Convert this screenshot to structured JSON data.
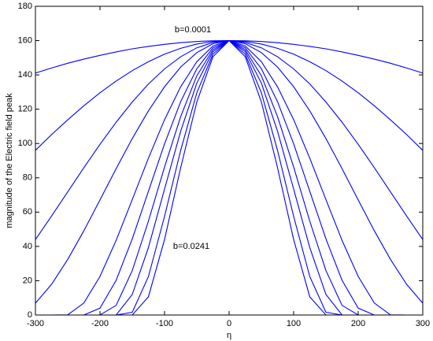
{
  "chart_data": {
    "type": "line",
    "xlabel": "η",
    "ylabel": "magnitude of the Electric field peak",
    "annotations": [
      "b=0.0001",
      "b=0.0241"
    ],
    "x": [
      -300,
      -275,
      -250,
      -225,
      -200,
      -175,
      -150,
      -125,
      -100,
      -75,
      -50,
      -25,
      0,
      25,
      50,
      75,
      100,
      125,
      150,
      175,
      200,
      225,
      250,
      275,
      300
    ],
    "series": [
      {
        "color": "#0000ff",
        "values": [
          141.1,
          144.0,
          146.8,
          149.2,
          151.4,
          153.4,
          155.2,
          156.6,
          157.8,
          158.8,
          159.5,
          159.9,
          160,
          159.9,
          159.5,
          158.8,
          157.8,
          156.6,
          155.2,
          153.4,
          151.4,
          149.2,
          146.8,
          144.0,
          141.1
        ]
      },
      {
        "color": "#0000ff",
        "values": [
          96.0,
          105.2,
          113.8,
          122.0,
          129.6,
          136.4,
          142.5,
          147.7,
          152.1,
          155.5,
          158.0,
          159.5,
          160,
          159.5,
          158.0,
          155.5,
          152.1,
          147.7,
          142.5,
          136.4,
          129.6,
          122.0,
          113.8,
          105.2,
          96.0
        ]
      },
      {
        "color": "#0000ff",
        "values": [
          44.0,
          57.7,
          71.8,
          85.9,
          99.5,
          112.4,
          124.2,
          134.7,
          143.5,
          150.6,
          155.8,
          158.9,
          160,
          158.9,
          155.8,
          150.6,
          143.5,
          134.7,
          124.2,
          112.4,
          99.5,
          85.9,
          71.8,
          57.7,
          44.0
        ]
      },
      {
        "color": "#0000ff",
        "values": [
          6.9,
          17.9,
          32.4,
          49.1,
          67.1,
          85.3,
          102.9,
          119.0,
          133.1,
          144.6,
          153.0,
          158.2,
          160,
          158.2,
          153.0,
          144.6,
          133.1,
          119.0,
          102.9,
          85.3,
          67.1,
          49.1,
          32.4,
          17.9,
          6.9
        ]
      },
      {
        "color": "#0000ff",
        "values": [
          0,
          0,
          0.1,
          7.0,
          22.5,
          43.5,
          67.3,
          91.4,
          113.9,
          133.1,
          147.7,
          156.9,
          160,
          156.9,
          147.7,
          133.1,
          113.9,
          91.4,
          67.3,
          43.5,
          22.5,
          7.0,
          0.1,
          0,
          0
        ]
      },
      {
        "color": "#0000ff",
        "values": [
          0,
          0,
          0,
          0,
          4.0,
          20.2,
          44.4,
          72.1,
          99.8,
          124.4,
          143.6,
          155.8,
          160,
          155.8,
          143.6,
          124.4,
          99.8,
          72.1,
          44.4,
          20.2,
          4.0,
          0,
          0,
          0,
          0
        ]
      },
      {
        "color": "#0000ff",
        "values": [
          0,
          0,
          0,
          0,
          0,
          5.6,
          25.9,
          54.7,
          86.3,
          115.7,
          139.5,
          154.7,
          160,
          154.7,
          139.5,
          115.7,
          86.3,
          54.7,
          25.9,
          5.6,
          0,
          0,
          0,
          0,
          0
        ]
      },
      {
        "color": "#0000ff",
        "values": [
          0,
          0,
          0,
          0,
          0,
          0,
          12.0,
          39.3,
          73.4,
          107.2,
          135.2,
          153.6,
          160,
          153.6,
          135.2,
          107.2,
          73.4,
          39.3,
          12.0,
          0,
          0,
          0,
          0,
          0,
          0
        ]
      },
      {
        "color": "#0000ff",
        "values": [
          0,
          0,
          0,
          0,
          0,
          0,
          1.6,
          22.4,
          57.5,
          96.0,
          129.6,
          152.1,
          160,
          152.1,
          129.6,
          96.0,
          57.5,
          22.4,
          1.6,
          0,
          0,
          0,
          0,
          0,
          0
        ]
      },
      {
        "color": "#0000ff",
        "values": [
          0,
          0,
          0,
          0,
          0,
          0,
          0,
          10.6,
          44.0,
          85.9,
          124.2,
          150.6,
          160,
          150.6,
          124.2,
          85.9,
          44.0,
          10.6,
          0,
          0,
          0,
          0,
          0,
          0,
          0
        ]
      }
    ],
    "xlim": [
      -300,
      300
    ],
    "xticks": [
      -300,
      -200,
      -100,
      0,
      100,
      200,
      300
    ],
    "ylim": [
      0,
      180
    ],
    "yticks": [
      0,
      20,
      40,
      60,
      80,
      100,
      120,
      140,
      160,
      180
    ],
    "grid": false
  }
}
